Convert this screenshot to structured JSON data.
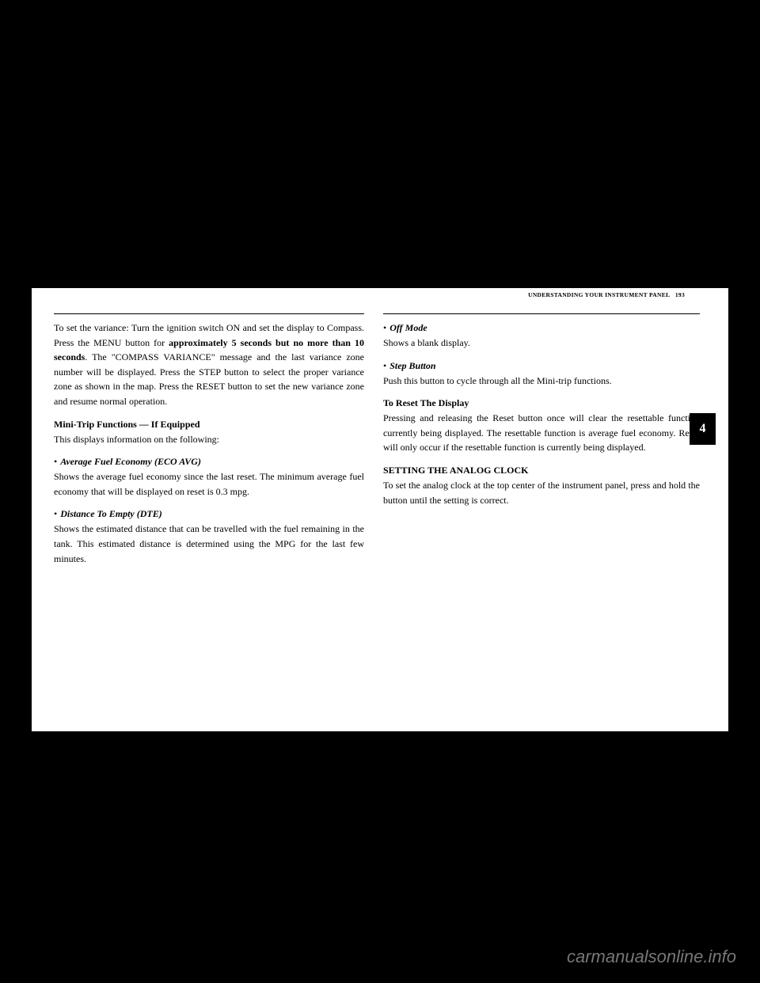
{
  "header": {
    "section_title": "UNDERSTANDING YOUR INSTRUMENT PANEL",
    "page_number": "193"
  },
  "section_tab": "4",
  "left_column": {
    "para1_prefix": "To set the variance: Turn the ignition switch ON and set the display to Compass. Press the MENU button for ",
    "para1_bold": "approximately 5 seconds but no more than 10 seconds",
    "para1_suffix": ". The \"COMPASS VARIANCE\" message and the last variance zone number will be displayed. Press the STEP button to select the proper variance zone as shown in the map. Press the RESET button to set the new variance zone and resume normal operation.",
    "subheading1": "Mini-Trip Functions — If Equipped",
    "para2": "This displays information on the following:",
    "bullet1": "Average Fuel Economy (ECO AVG)",
    "para3": "Shows the average fuel economy since the last reset. The minimum average fuel economy that will be displayed on reset is 0.3 mpg.",
    "bullet2": "Distance To Empty (DTE)",
    "para4": "Shows the estimated distance that can be travelled with the fuel remaining in the tank. This estimated distance is determined using the MPG for the last few minutes."
  },
  "right_column": {
    "bullet1": "Off Mode",
    "para1": "Shows a blank display.",
    "bullet2": "Step Button",
    "para2": "Push this button to cycle through all the Mini-trip functions.",
    "subheading1": "To Reset The Display",
    "para3": "Pressing and releasing the Reset button once will clear the resettable function currently being displayed. The resettable function is average fuel economy. Reset will only occur if the resettable function is currently being displayed.",
    "heading1": "SETTING THE ANALOG CLOCK",
    "para4": "To set the analog clock at the top center of the instrument panel, press and hold the button until the setting is correct."
  },
  "watermark": "carmanualsonline.info",
  "colors": {
    "background": "#000000",
    "page": "#ffffff",
    "text": "#000000",
    "tab_bg": "#000000",
    "tab_text": "#ffffff",
    "watermark": "#777777"
  }
}
